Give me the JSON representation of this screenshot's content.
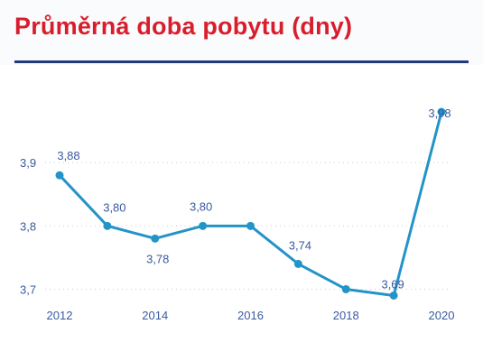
{
  "header": {
    "title": "Průměrná doba pobytu (dny)"
  },
  "colors": {
    "title": "#d81e2c",
    "rule": "#1f3a78",
    "line": "#2394c8",
    "label": "#3a5aa0",
    "grid": "#c8ccd4"
  },
  "chart_data": {
    "type": "line",
    "title": "Průměrná doba pobytu (dny)",
    "xlabel": "",
    "ylabel": "",
    "x": [
      2012,
      2013,
      2014,
      2015,
      2016,
      2017,
      2018,
      2019,
      2020
    ],
    "series": [
      {
        "values": [
          3.88,
          3.8,
          3.78,
          3.8,
          3.8,
          3.74,
          3.7,
          3.69,
          3.98
        ],
        "data_labels": [
          "3,88",
          "3,80",
          "3,78",
          "3,80",
          null,
          "3,74",
          null,
          "3,69",
          "3,98"
        ]
      }
    ],
    "x_ticks": [
      "2012",
      "2014",
      "2016",
      "2018",
      "2020"
    ],
    "y_ticks": [
      "3,7",
      "3,8",
      "3,9"
    ],
    "y_tick_values": [
      3.7,
      3.8,
      3.9
    ],
    "x_tick_values": [
      2012,
      2014,
      2016,
      2018,
      2020
    ],
    "ylim": [
      3.685,
      4.0
    ],
    "xlim": [
      2012,
      2020
    ],
    "grid": "horizontal dotted",
    "legend": "none"
  }
}
